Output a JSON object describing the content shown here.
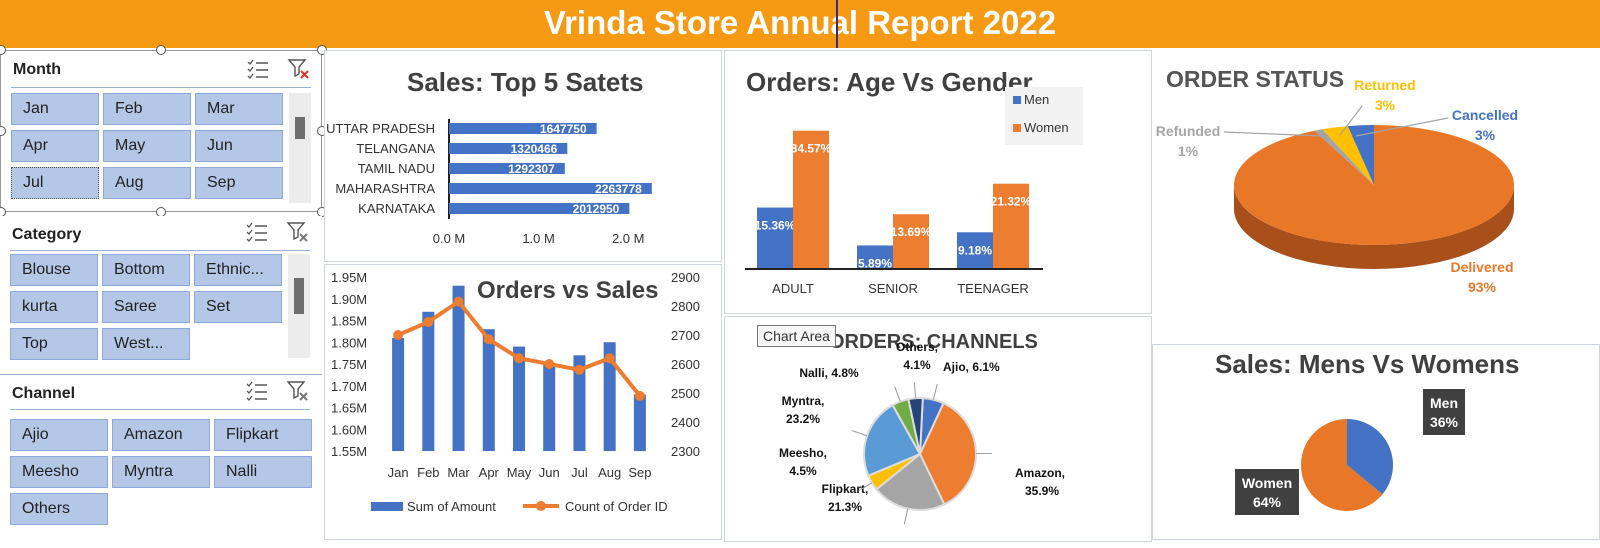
{
  "header": {
    "title": "Vrinda Store Annual Report 2022"
  },
  "slicers": {
    "month": {
      "title": "Month",
      "items": [
        "Jan",
        "Feb",
        "Mar",
        "Apr",
        "May",
        "Jun",
        "Jul",
        "Aug",
        "Sep"
      ]
    },
    "category": {
      "title": "Category",
      "items": [
        "Blouse",
        "Bottom",
        "Ethnic...",
        "kurta",
        "Saree",
        "Set",
        "Top",
        "West..."
      ]
    },
    "channel": {
      "title": "Channel",
      "items": [
        "Ajio",
        "Amazon",
        "Flipkart",
        "Meesho",
        "Myntra",
        "Nalli",
        "Others"
      ]
    }
  },
  "tooltip": "Chart Area",
  "colors": {
    "banner": "#f79a13",
    "blue": "#4472c4",
    "orange": "#ed7d31",
    "slicer_button": "#b4c7e7"
  },
  "chart_data": [
    {
      "id": "top_states",
      "type": "bar",
      "orientation": "horizontal",
      "title": "Sales: Top 5 Satets",
      "categories": [
        "UTTAR PRADESH",
        "TELANGANA",
        "TAMIL NADU",
        "MAHARASHTRA",
        "KARNATAKA"
      ],
      "values": [
        1647750,
        1320466,
        1292307,
        2263778,
        2012950
      ],
      "value_labels": [
        "1647750",
        "1320466",
        "1292307",
        "2263778",
        "2012950"
      ],
      "xlim": [
        0,
        2500000
      ],
      "xticks": [
        "0.0 M",
        "1.0 M",
        "2.0 M"
      ]
    },
    {
      "id": "age_gender",
      "type": "bar",
      "title": "Orders: Age Vs Gender",
      "categories": [
        "ADULT",
        "SENIOR",
        "TEENAGER"
      ],
      "series": [
        {
          "name": "Men",
          "values": [
            15.36,
            5.89,
            9.18
          ],
          "labels": [
            "15.36%",
            "5.89%",
            "9.18%"
          ]
        },
        {
          "name": "Women",
          "values": [
            34.57,
            13.69,
            21.32
          ],
          "labels": [
            "34.57%",
            "13.69%",
            "21.32%"
          ]
        }
      ],
      "legend": "top-right"
    },
    {
      "id": "order_status",
      "type": "pie",
      "title": "ORDER STATUS",
      "slices": [
        {
          "name": "Delivered",
          "value": 93,
          "label": "Delivered",
          "pct": "93%"
        },
        {
          "name": "Refunded",
          "value": 1,
          "label": "Refunded",
          "pct": "1%"
        },
        {
          "name": "Returned",
          "value": 3,
          "label": "Returned",
          "pct": "3%"
        },
        {
          "name": "Cancelled",
          "value": 3,
          "label": "Cancelled",
          "pct": "3%"
        }
      ]
    },
    {
      "id": "orders_vs_sales",
      "type": "bar",
      "title": "Orders vs Sales",
      "categories": [
        "Jan",
        "Feb",
        "Mar",
        "Apr",
        "May",
        "Jun",
        "Jul",
        "Aug",
        "Sep"
      ],
      "series": [
        {
          "name": "Sum of Amount",
          "type": "bar",
          "axis": "left",
          "values": [
            1.81,
            1.87,
            1.93,
            1.83,
            1.79,
            1.75,
            1.77,
            1.8,
            1.68
          ]
        },
        {
          "name": "Count of Order ID",
          "type": "line",
          "axis": "right",
          "values": [
            2700,
            2745,
            2815,
            2685,
            2620,
            2600,
            2580,
            2620,
            2490
          ]
        }
      ],
      "ylim": [
        1.55,
        1.95
      ],
      "y2lim": [
        2300,
        2900
      ],
      "yticks": [
        "1.55M",
        "1.60M",
        "1.65M",
        "1.70M",
        "1.75M",
        "1.80M",
        "1.85M",
        "1.90M",
        "1.95M"
      ],
      "y2ticks": [
        "2300",
        "2400",
        "2500",
        "2600",
        "2700",
        "2800",
        "2900"
      ],
      "legend": "bottom"
    },
    {
      "id": "channels",
      "type": "pie",
      "title": "ORDERS: CHANNELS",
      "slices": [
        {
          "name": "Ajio",
          "value": 6.1,
          "label": "Ajio, 6.1%"
        },
        {
          "name": "Amazon",
          "value": 35.9,
          "label": "Amazon, 35.9%"
        },
        {
          "name": "Flipkart",
          "value": 21.3,
          "label": "Flipkart, 21.3%"
        },
        {
          "name": "Meesho",
          "value": 4.5,
          "label": "Meesho, 4.5%"
        },
        {
          "name": "Myntra",
          "value": 23.2,
          "label": "Myntra, 23.2%"
        },
        {
          "name": "Nalli",
          "value": 4.8,
          "label": "Nalli, 4.8%"
        },
        {
          "name": "Others",
          "value": 4.1,
          "label": "Others, 4.1%"
        }
      ]
    },
    {
      "id": "mens_womens",
      "type": "pie",
      "title": "Sales: Mens Vs Womens",
      "slices": [
        {
          "name": "Men",
          "value": 36,
          "pct": "36%"
        },
        {
          "name": "Women",
          "value": 64,
          "pct": "64%"
        }
      ]
    }
  ]
}
